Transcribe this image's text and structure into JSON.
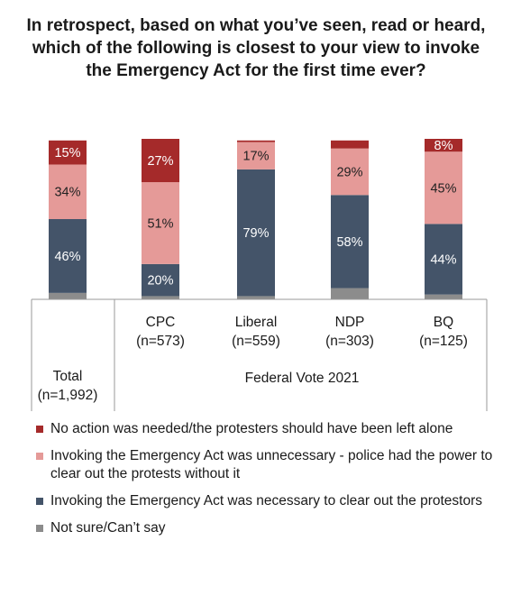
{
  "title": "In retrospect, based on what you’ve seen, read or heard, which of the following is closest to your view to invoke the Emergency Act for the first time ever?",
  "colors": {
    "no_action": "#A52A2A",
    "unnecessary": "#E59A98",
    "necessary": "#445469",
    "not_sure": "#8C8C8C"
  },
  "chart_data": {
    "type": "bar",
    "stacked": true,
    "categories": [
      "Total (n=1,992)",
      "CPC (n=573)",
      "Liberal (n=559)",
      "NDP (n=303)",
      "BQ (n=125)"
    ],
    "category_labels": [
      {
        "line1": "Total",
        "line2": "(n=1,992)"
      },
      {
        "line1": "CPC",
        "line2": "(n=573)"
      },
      {
        "line1": "Liberal",
        "line2": "(n=559)"
      },
      {
        "line1": "NDP",
        "line2": "(n=303)"
      },
      {
        "line1": "BQ",
        "line2": "(n=125)"
      }
    ],
    "group_label": "Federal Vote 2021",
    "series": [
      {
        "name": "Not sure/Can’t say",
        "key": "not_sure",
        "values": [
          4,
          2,
          2,
          7,
          3
        ],
        "labels": [
          "",
          "",
          "",
          "",
          ""
        ]
      },
      {
        "name": "Invoking the Emergency Act was necessary to clear out the protestors",
        "key": "necessary",
        "values": [
          46,
          20,
          79,
          58,
          44
        ],
        "labels": [
          "46%",
          "20%",
          "79%",
          "58%",
          "44%"
        ]
      },
      {
        "name": "Invoking the Emergency Act was unnecessary - police had the power to clear out the protests without it",
        "key": "unnecessary",
        "values": [
          34,
          51,
          17,
          29,
          45
        ],
        "labels": [
          "34%",
          "51%",
          "17%",
          "29%",
          "45%"
        ]
      },
      {
        "name": "No action was needed/the protesters should have been left alone",
        "key": "no_action",
        "values": [
          15,
          27,
          1,
          5,
          8
        ],
        "labels": [
          "15%",
          "27%",
          "",
          "",
          "8%"
        ]
      }
    ],
    "legend_order": [
      "no_action",
      "unnecessary",
      "necessary",
      "not_sure"
    ],
    "legend_placement": "bottom",
    "ylim": [
      0,
      100
    ],
    "grid": false
  }
}
